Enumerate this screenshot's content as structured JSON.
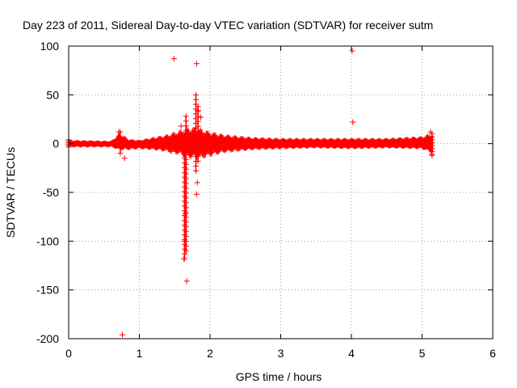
{
  "chart_data": {
    "type": "scatter",
    "title": "Day 223 of 2011, Sidereal Day-to-day VTEC variation (SDTVAR) for receiver sutm",
    "xlabel": "GPS time / hours",
    "ylabel": "SDTVAR / TECUs",
    "xlim": [
      0,
      6
    ],
    "ylim": [
      -200,
      100
    ],
    "xticks": [
      0,
      1,
      2,
      3,
      4,
      5,
      6
    ],
    "yticks": [
      -200,
      -150,
      -100,
      -50,
      0,
      50,
      100
    ],
    "xtick_labels": [
      "0",
      "1",
      "2",
      "3",
      "4",
      "5",
      "6"
    ],
    "ytick_labels": [
      "-200",
      "-150",
      "-100",
      "-50",
      "0",
      "50",
      "100"
    ],
    "grid": true,
    "marker": "+",
    "color": "#ff0000",
    "band_envelope": [
      {
        "x": 0.0,
        "lo": -4,
        "hi": 4
      },
      {
        "x": 0.6,
        "lo": -4,
        "hi": 3
      },
      {
        "x": 0.72,
        "lo": -7,
        "hi": 12
      },
      {
        "x": 0.85,
        "lo": -7,
        "hi": 5
      },
      {
        "x": 1.0,
        "lo": -6,
        "hi": 4
      },
      {
        "x": 1.2,
        "lo": -7,
        "hi": 7
      },
      {
        "x": 1.4,
        "lo": -9,
        "hi": 10
      },
      {
        "x": 1.55,
        "lo": -12,
        "hi": 14
      },
      {
        "x": 1.7,
        "lo": -16,
        "hi": 18
      },
      {
        "x": 1.85,
        "lo": -17,
        "hi": 17
      },
      {
        "x": 2.0,
        "lo": -14,
        "hi": 13
      },
      {
        "x": 2.2,
        "lo": -10,
        "hi": 10
      },
      {
        "x": 2.6,
        "lo": -7,
        "hi": 7
      },
      {
        "x": 3.0,
        "lo": -6,
        "hi": 6
      },
      {
        "x": 3.5,
        "lo": -5,
        "hi": 6
      },
      {
        "x": 4.0,
        "lo": -6,
        "hi": 6
      },
      {
        "x": 4.5,
        "lo": -5,
        "hi": 6
      },
      {
        "x": 5.0,
        "lo": -6,
        "hi": 8
      },
      {
        "x": 5.15,
        "lo": -11,
        "hi": 12
      }
    ],
    "spikes": [
      {
        "x": 1.64,
        "lo": -118,
        "hi": 5
      },
      {
        "x": 1.66,
        "lo": -110,
        "hi": 28
      },
      {
        "x": 1.8,
        "lo": -28,
        "hi": 50
      },
      {
        "x": 1.83,
        "lo": -18,
        "hi": 38
      },
      {
        "x": 0.73,
        "lo": -10,
        "hi": 12
      }
    ],
    "outliers": [
      {
        "x": 1.49,
        "y": 87
      },
      {
        "x": 1.81,
        "y": 82
      },
      {
        "x": 4.01,
        "y": 95
      },
      {
        "x": 4.02,
        "y": 22
      },
      {
        "x": 0.76,
        "y": -196
      },
      {
        "x": 1.67,
        "y": -141
      },
      {
        "x": 1.82,
        "y": -40
      },
      {
        "x": 1.81,
        "y": -52
      },
      {
        "x": 1.63,
        "y": -118
      },
      {
        "x": 1.64,
        "y": -100
      },
      {
        "x": 1.65,
        "y": -72
      },
      {
        "x": 1.45,
        "y": -8
      },
      {
        "x": 0.79,
        "y": -15
      },
      {
        "x": 1.59,
        "y": 18
      },
      {
        "x": 1.87,
        "y": 27
      },
      {
        "x": 1.83,
        "y": 34
      },
      {
        "x": 0.71,
        "y": 12
      },
      {
        "x": 5.14,
        "y": -12
      },
      {
        "x": 5.12,
        "y": 12
      }
    ]
  }
}
